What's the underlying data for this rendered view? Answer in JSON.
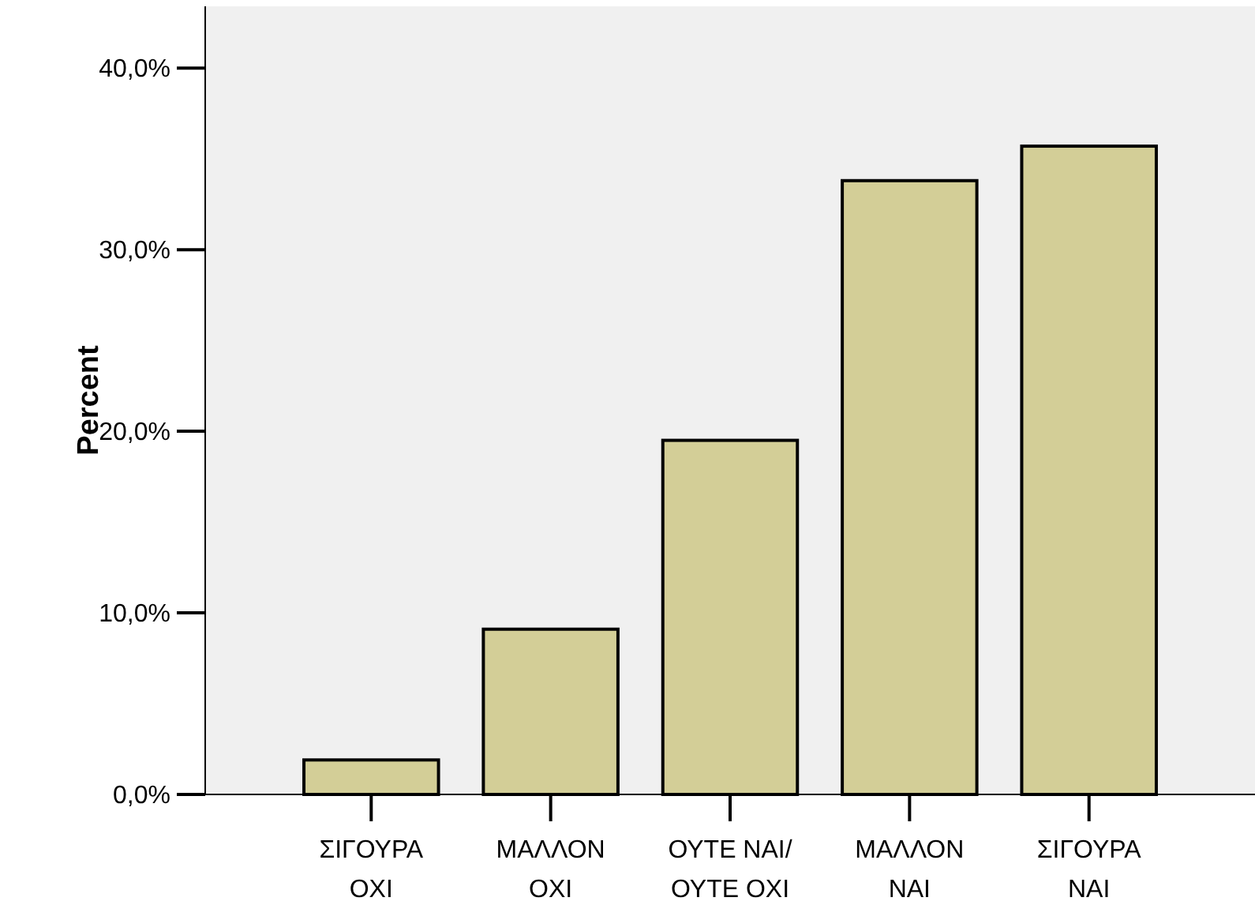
{
  "chart_data": {
    "type": "bar",
    "ylabel": "Percent",
    "categories": [
      "ΣΙΓΟΥΡΑ\nΟΧΙ",
      "ΜΑΛΛΟΝ\nΟΧΙ",
      "ΟΥΤΕ ΝΑΙ/\nΟΥΤΕ ΟΧΙ",
      "ΜΑΛΛΟΝ\nΝΑΙ",
      "ΣΙΓΟΥΡΑ\nΝΑΙ"
    ],
    "values": [
      1.9,
      9.1,
      19.5,
      33.8,
      35.7
    ],
    "color": "#d3ce97",
    "ylim": [
      0,
      43.4
    ],
    "yticks": [
      {
        "value": 0,
        "label": "0,0%"
      },
      {
        "value": 10,
        "label": "10,0%"
      },
      {
        "value": 20,
        "label": "20,0%"
      },
      {
        "value": 30,
        "label": "30,0%"
      },
      {
        "value": 40,
        "label": "40,0%"
      }
    ],
    "grid": false
  }
}
